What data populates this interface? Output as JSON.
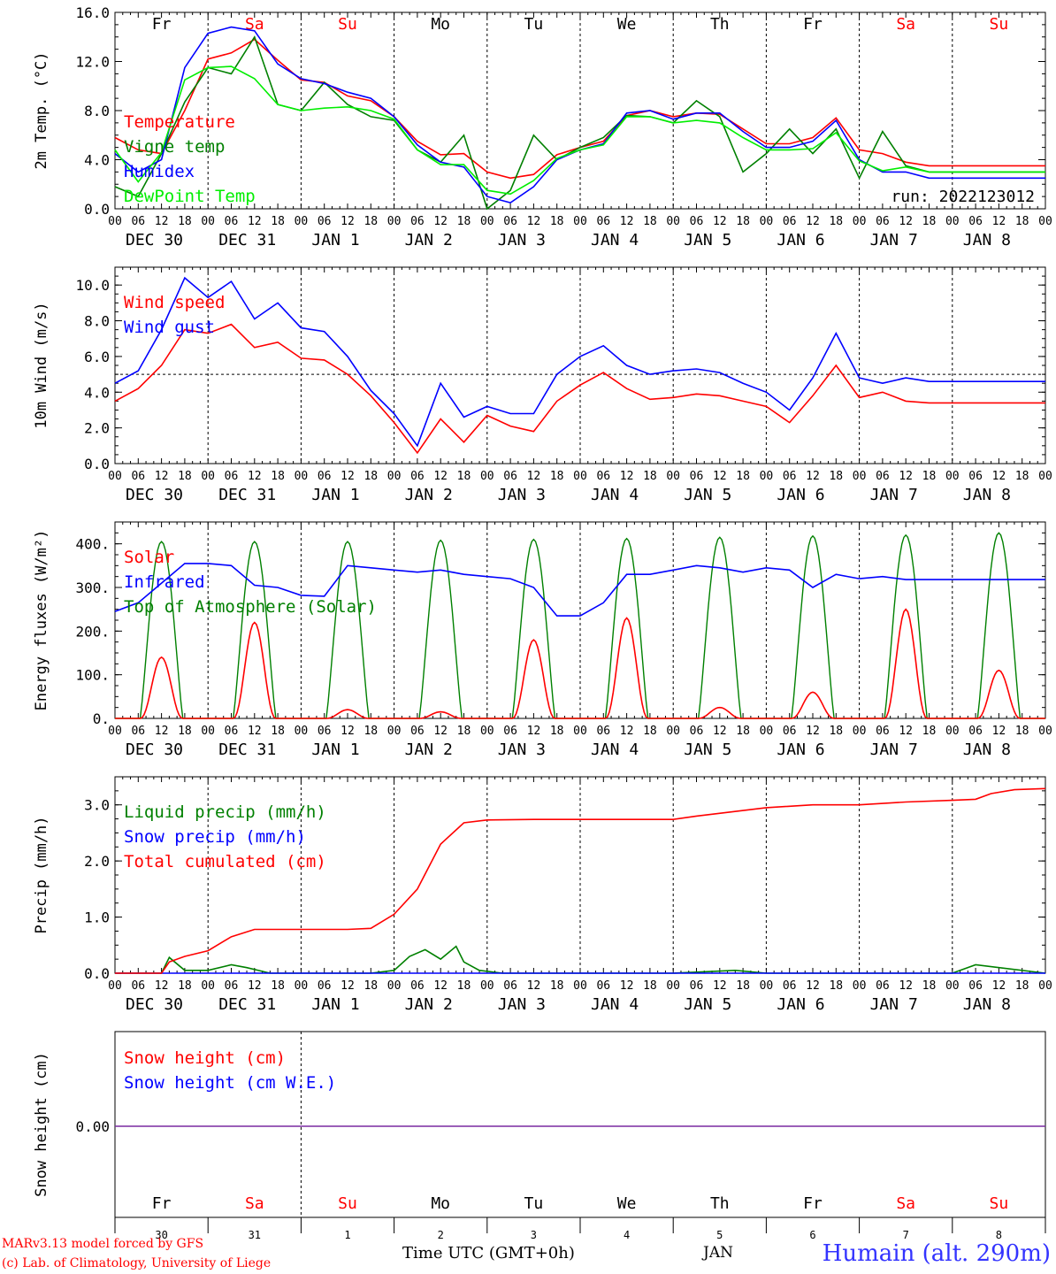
{
  "chart_data": [
    {
      "type": "line",
      "panel": "temperature",
      "ylabel": "2m Temp. (°C)",
      "ylim": [
        0,
        16
      ],
      "yticks": [
        "0.0",
        "4.0",
        "8.0",
        "12.0",
        "16.0"
      ],
      "run_label": "run: 2022123012",
      "x_unit": "hours since 2022-12-30 00 UTC",
      "series": [
        {
          "name": "Temperature",
          "color": "#ff0000",
          "x": [
            0,
            6,
            12,
            18,
            24,
            30,
            36,
            42,
            48,
            54,
            60,
            66,
            72,
            78,
            84,
            90,
            96,
            102,
            108,
            114,
            120,
            126,
            132,
            138,
            144,
            150,
            156,
            162,
            168,
            174,
            180,
            186,
            192,
            198,
            204,
            210,
            216,
            222,
            228,
            234,
            240
          ],
          "y": [
            5.8,
            4.8,
            4.5,
            8.0,
            12.2,
            12.7,
            13.8,
            12.1,
            10.5,
            10.3,
            9.2,
            8.8,
            7.5,
            5.5,
            4.4,
            4.5,
            3.0,
            2.5,
            2.8,
            4.4,
            5.0,
            5.5,
            7.6,
            8.0,
            7.5,
            7.8,
            7.7,
            6.5,
            5.3,
            5.3,
            5.8,
            7.4,
            4.8,
            4.5,
            3.8,
            3.5,
            3.5,
            3.5,
            3.5,
            3.5,
            3.5
          ]
        },
        {
          "name": "Vigne temp",
          "color": "#008000",
          "x": [
            0,
            6,
            12,
            18,
            24,
            30,
            36,
            42,
            48,
            54,
            60,
            66,
            72,
            78,
            84,
            90,
            96,
            102,
            108,
            114,
            120,
            126,
            132,
            138,
            144,
            150,
            156,
            162,
            168,
            174,
            180,
            186,
            192,
            198,
            204,
            210,
            216,
            222,
            228,
            234,
            240
          ],
          "y": [
            1.8,
            1.0,
            4.5,
            8.7,
            11.5,
            11.0,
            14.0,
            8.5,
            8.0,
            10.3,
            8.5,
            7.5,
            7.2,
            4.8,
            3.8,
            6.0,
            0.0,
            1.5,
            6.0,
            4.0,
            5.0,
            5.8,
            7.6,
            7.5,
            7.0,
            8.8,
            7.5,
            3.0,
            4.5,
            6.5,
            4.5,
            6.5,
            2.5,
            6.3,
            3.5,
            3.0,
            3.0,
            3.0,
            3.0,
            3.0,
            3.0
          ]
        },
        {
          "name": "Humidex",
          "color": "#0000ff",
          "x": [
            0,
            6,
            12,
            18,
            24,
            30,
            36,
            42,
            48,
            54,
            60,
            66,
            72,
            78,
            84,
            90,
            96,
            102,
            108,
            114,
            120,
            126,
            132,
            138,
            144,
            150,
            156,
            162,
            168,
            174,
            180,
            186,
            192,
            198,
            204,
            210,
            216,
            222,
            228,
            234,
            240
          ],
          "y": [
            4.5,
            3.0,
            4.0,
            11.5,
            14.3,
            14.8,
            14.5,
            11.8,
            10.6,
            10.2,
            9.5,
            9.0,
            7.5,
            5.2,
            3.8,
            3.4,
            1.0,
            0.5,
            1.8,
            4.0,
            4.8,
            5.3,
            7.8,
            8.0,
            7.3,
            7.8,
            7.8,
            6.3,
            5.0,
            5.0,
            5.5,
            7.2,
            4.0,
            3.0,
            3.0,
            2.5,
            2.5,
            2.5,
            2.5,
            2.5,
            2.5
          ]
        },
        {
          "name": "DewPoint Temp",
          "color": "#00ee00",
          "x": [
            0,
            6,
            12,
            18,
            24,
            30,
            36,
            42,
            48,
            54,
            60,
            66,
            72,
            78,
            84,
            90,
            96,
            102,
            108,
            114,
            120,
            126,
            132,
            138,
            144,
            150,
            156,
            162,
            168,
            174,
            180,
            186,
            192,
            198,
            204,
            210,
            216,
            222,
            228,
            234,
            240
          ],
          "y": [
            4.8,
            2.2,
            4.6,
            10.5,
            11.5,
            11.6,
            10.6,
            8.5,
            8.0,
            8.2,
            8.3,
            8.0,
            7.3,
            4.8,
            3.6,
            3.6,
            1.5,
            1.2,
            2.3,
            4.1,
            4.8,
            5.2,
            7.5,
            7.5,
            7.0,
            7.2,
            7.0,
            5.8,
            4.8,
            4.8,
            4.9,
            6.2,
            3.9,
            3.1,
            3.4,
            3.0,
            3.0,
            3.0,
            3.0,
            3.0,
            3.0
          ]
        }
      ]
    },
    {
      "type": "line",
      "panel": "wind",
      "ylabel": "10m Wind (m/s)",
      "ylim": [
        0,
        11
      ],
      "yticks": [
        "0.0",
        "2.0",
        "4.0",
        "6.0",
        "8.0",
        "10.0"
      ],
      "reference_line": 5.0,
      "series": [
        {
          "name": "Wind speed",
          "color": "#ff0000",
          "x": [
            0,
            6,
            12,
            18,
            24,
            30,
            36,
            42,
            48,
            54,
            60,
            66,
            72,
            78,
            84,
            90,
            96,
            102,
            108,
            114,
            120,
            126,
            132,
            138,
            144,
            150,
            156,
            162,
            168,
            174,
            180,
            186,
            192,
            198,
            204,
            210,
            216,
            222,
            228,
            234,
            240
          ],
          "y": [
            3.5,
            4.2,
            5.5,
            7.5,
            7.3,
            7.8,
            6.5,
            6.8,
            5.9,
            5.8,
            5.0,
            3.8,
            2.3,
            0.6,
            2.5,
            1.2,
            2.7,
            2.1,
            1.8,
            3.5,
            4.4,
            5.1,
            4.2,
            3.6,
            3.7,
            3.9,
            3.8,
            3.5,
            3.2,
            2.3,
            3.8,
            5.5,
            3.7,
            4.0,
            3.5,
            3.4,
            3.4,
            3.4,
            3.4,
            3.4,
            3.4
          ]
        },
        {
          "name": "Wind gust",
          "color": "#0000ff",
          "x": [
            0,
            6,
            12,
            18,
            24,
            30,
            36,
            42,
            48,
            54,
            60,
            66,
            72,
            78,
            84,
            90,
            96,
            102,
            108,
            114,
            120,
            126,
            132,
            138,
            144,
            150,
            156,
            162,
            168,
            174,
            180,
            186,
            192,
            198,
            204,
            210,
            216,
            222,
            228,
            234,
            240
          ],
          "y": [
            4.5,
            5.2,
            7.5,
            10.4,
            9.3,
            10.2,
            8.1,
            9.0,
            7.6,
            7.4,
            6.0,
            4.1,
            2.8,
            1.0,
            4.5,
            2.6,
            3.2,
            2.8,
            2.8,
            5.0,
            6.0,
            6.6,
            5.5,
            5.0,
            5.2,
            5.3,
            5.1,
            4.5,
            4.0,
            3.0,
            4.8,
            7.3,
            4.8,
            4.5,
            4.8,
            4.6,
            4.6,
            4.6,
            4.6,
            4.6,
            4.6
          ]
        }
      ]
    },
    {
      "type": "line",
      "panel": "energy",
      "ylabel": "Energy fluxes (W/m²)",
      "ylim": [
        0,
        450
      ],
      "yticks": [
        "0.",
        "100.",
        "200.",
        "300.",
        "400."
      ],
      "series": [
        {
          "name": "Solar",
          "color": "#ff0000",
          "peaks": [
            140,
            220,
            20,
            15,
            180,
            230,
            25,
            60,
            250,
            110
          ]
        },
        {
          "name": "Infrared",
          "color": "#0000ff",
          "x": [
            0,
            6,
            12,
            18,
            24,
            30,
            36,
            42,
            48,
            54,
            60,
            66,
            72,
            78,
            84,
            90,
            96,
            102,
            108,
            114,
            120,
            126,
            132,
            138,
            144,
            150,
            156,
            162,
            168,
            174,
            180,
            186,
            192,
            198,
            204,
            210,
            216,
            222,
            228,
            234,
            240
          ],
          "y": [
            245,
            265,
            310,
            355,
            355,
            350,
            305,
            300,
            282,
            280,
            350,
            345,
            340,
            335,
            340,
            330,
            325,
            320,
            300,
            235,
            235,
            265,
            330,
            330,
            340,
            350,
            345,
            335,
            345,
            340,
            300,
            330,
            320,
            325,
            318,
            318,
            318,
            318,
            318,
            318,
            318
          ]
        },
        {
          "name": "Top of Atmosphere (Solar)",
          "color": "#008000",
          "peaks": [
            405,
            405,
            405,
            408,
            410,
            412,
            415,
            418,
            420,
            425
          ]
        }
      ]
    },
    {
      "type": "line",
      "panel": "precip",
      "ylabel": "Precip (mm/h)",
      "ylim": [
        0,
        3.5
      ],
      "yticks": [
        "0.0",
        "1.0",
        "2.0",
        "3.0"
      ],
      "series": [
        {
          "name": "Liquid precip (mm/h)",
          "color": "#008000",
          "x": [
            0,
            12,
            14,
            18,
            24,
            30,
            34,
            40,
            48,
            60,
            66,
            72,
            76,
            80,
            84,
            88,
            90,
            94,
            100,
            120,
            144,
            160,
            168,
            200,
            216,
            222,
            240
          ],
          "y": [
            0,
            0,
            0.28,
            0.05,
            0.05,
            0.15,
            0.1,
            0,
            0,
            0,
            0,
            0.05,
            0.3,
            0.42,
            0.25,
            0.48,
            0.2,
            0.05,
            0,
            0,
            0,
            0.05,
            0,
            0,
            0,
            0.15,
            0
          ]
        },
        {
          "name": "Snow precip (mm/h)",
          "color": "#0000ff",
          "x": [
            0,
            240
          ],
          "y": [
            0,
            0
          ]
        },
        {
          "name": "Total cumulated (cm)",
          "color": "#ff0000",
          "x": [
            0,
            12,
            14,
            18,
            24,
            30,
            36,
            48,
            60,
            66,
            72,
            78,
            84,
            90,
            96,
            108,
            120,
            132,
            144,
            150,
            168,
            180,
            192,
            204,
            216,
            222,
            226,
            232,
            240
          ],
          "y": [
            0,
            0,
            0.2,
            0.3,
            0.4,
            0.65,
            0.78,
            0.78,
            0.78,
            0.8,
            1.05,
            1.5,
            2.3,
            2.68,
            2.73,
            2.74,
            2.74,
            2.74,
            2.74,
            2.8,
            2.95,
            3.0,
            3.0,
            3.05,
            3.08,
            3.1,
            3.2,
            3.27,
            3.29
          ]
        }
      ]
    },
    {
      "type": "line",
      "panel": "snow",
      "ylabel": "Snow height (cm)",
      "ytick": "0.00",
      "series": [
        {
          "name": "Snow height (cm)",
          "color": "#ff0000",
          "x": [
            0,
            240
          ],
          "y": [
            0,
            0
          ]
        },
        {
          "name": "Snow height (cm W.E.)",
          "color": "#0000ff",
          "x": [
            0,
            240
          ],
          "y": [
            0,
            0
          ]
        }
      ]
    }
  ],
  "axis": {
    "hour_ticks": [
      "00",
      "06",
      "12",
      "18"
    ],
    "final_tick": "00",
    "date_labels": [
      "DEC 30",
      "DEC 31",
      "JAN  1",
      "JAN  2",
      "JAN  3",
      "JAN  4",
      "JAN  5",
      "JAN  6",
      "JAN  7",
      "JAN  8"
    ],
    "day_names": [
      "Fr",
      "Sa",
      "Su",
      "Mo",
      "Tu",
      "We",
      "Th",
      "Fr",
      "Sa",
      "Su"
    ],
    "day_colors": [
      "#000000",
      "#ff0000",
      "#ff0000",
      "#000000",
      "#000000",
      "#000000",
      "#000000",
      "#000000",
      "#ff0000",
      "#ff0000"
    ],
    "day_numbers": [
      "30",
      "31",
      "1",
      "2",
      "3",
      "4",
      "5",
      "6",
      "7",
      "8"
    ]
  },
  "footer": {
    "credit_line1": "MARv3.13 model forced by GFS",
    "credit_line2": "(c) Lab. of Climatology, University of Liege",
    "xtitle": "Time UTC (GMT+0h)",
    "month": "JAN",
    "station": "Humain (alt. 290m)"
  }
}
